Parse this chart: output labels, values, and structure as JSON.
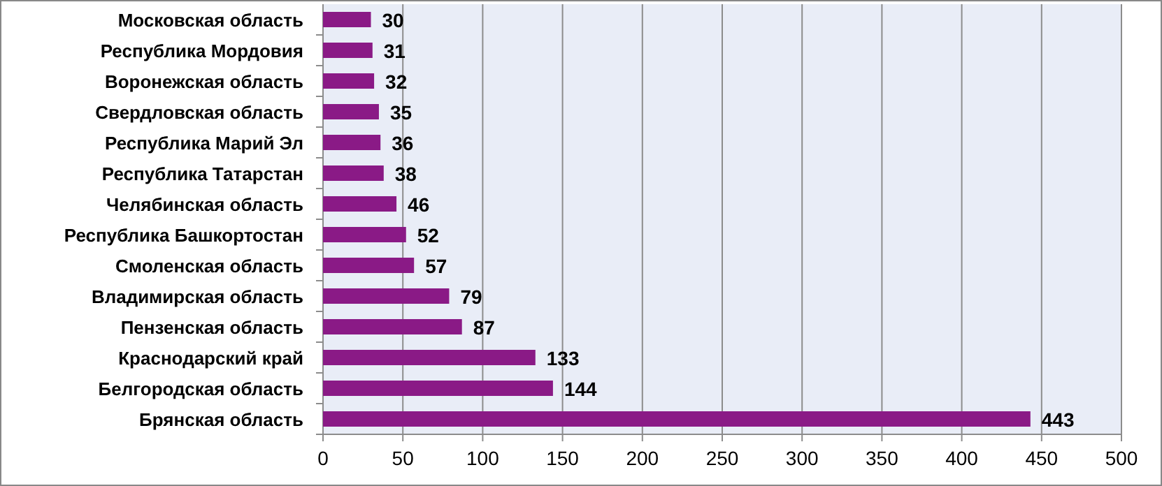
{
  "chart_data": {
    "type": "bar",
    "orientation": "horizontal",
    "categories": [
      "Московская область",
      "Республика Мордовия",
      "Воронежская область",
      "Свердловская область",
      "Республика Марий Эл",
      "Республика Татарстан",
      "Челябинская область",
      "Республика Башкортостан",
      "Смоленская область",
      "Владимирская область",
      "Пензенская область",
      "Краснодарский край",
      "Белгородская область",
      "Брянская область"
    ],
    "values": [
      30,
      31,
      32,
      35,
      36,
      38,
      46,
      52,
      57,
      79,
      87,
      133,
      144,
      443
    ],
    "color": "#8a1a86",
    "xlim": [
      0,
      500
    ],
    "xticks": [
      0,
      50,
      100,
      150,
      200,
      250,
      300,
      350,
      400,
      450,
      500
    ],
    "grid": "x",
    "data_labels": true
  }
}
